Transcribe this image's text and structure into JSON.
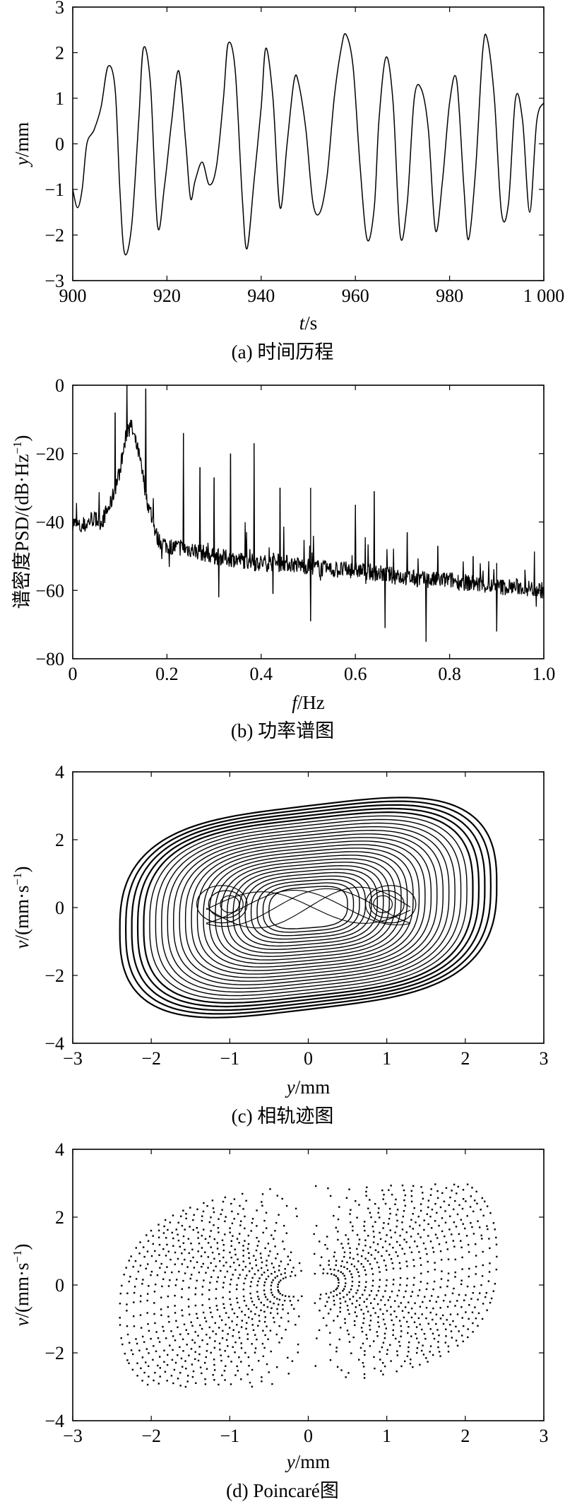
{
  "chart_data": [
    {
      "id": "a",
      "type": "line",
      "caption": "(a) 时间历程",
      "xlabel_var": "t",
      "xlabel_unit": "/s",
      "ylabel_var": "y",
      "ylabel_unit": "/mm",
      "xlim": [
        900,
        1000
      ],
      "ylim": [
        -3,
        3
      ],
      "xticks": [
        900,
        920,
        940,
        960,
        980,
        1000
      ],
      "xtick_labels": [
        "900",
        "920",
        "940",
        "960",
        "980",
        "1 000"
      ],
      "yticks": [
        -3,
        -2,
        -1,
        0,
        1,
        2,
        3
      ],
      "ytick_labels": [
        "−3",
        "−2",
        "−1",
        "0",
        "1",
        "2",
        "3"
      ],
      "series": [
        {
          "name": "y(t)",
          "x": [
            900,
            901,
            902,
            903,
            904.5,
            906,
            907.5,
            909,
            910,
            911,
            912.5,
            914,
            915,
            916.5,
            918,
            919.5,
            921,
            922.5,
            924,
            925,
            926,
            927.5,
            929,
            930.5,
            932,
            933,
            934.5,
            936,
            937,
            938.5,
            940,
            941,
            942.5,
            944,
            945.5,
            947,
            948,
            949.5,
            951,
            952.5,
            954,
            955.5,
            957,
            958,
            959.5,
            961,
            962.5,
            964,
            965,
            966.5,
            968,
            969.5,
            971,
            972.5,
            974,
            975.5,
            977,
            978.5,
            980,
            981.5,
            983,
            984,
            985.5,
            987,
            988,
            989.5,
            991,
            992.5,
            994,
            995.5,
            997,
            998.5,
            1000
          ],
          "values": [
            -1.0,
            -1.4,
            -1.0,
            0.0,
            0.3,
            0.8,
            1.7,
            1.2,
            -1.0,
            -2.4,
            -1.8,
            0.5,
            2.1,
            1.3,
            -1.8,
            -0.9,
            0.5,
            1.6,
            0.0,
            -1.2,
            -0.8,
            -0.4,
            -0.9,
            -0.5,
            1.0,
            2.2,
            1.6,
            -1.2,
            -2.3,
            -0.8,
            0.8,
            2.1,
            1.0,
            -1.4,
            0.0,
            1.4,
            1.3,
            0.3,
            -1.3,
            -1.5,
            -0.7,
            1.0,
            2.1,
            2.4,
            1.7,
            -0.5,
            -2.1,
            -1.4,
            0.5,
            1.9,
            0.9,
            -2.0,
            -1.3,
            1.0,
            1.2,
            0.3,
            -1.9,
            -0.8,
            0.9,
            1.4,
            -0.9,
            -2.1,
            -0.6,
            2.0,
            2.3,
            1.0,
            -1.5,
            -1.3,
            1.0,
            0.5,
            -1.5,
            0.5,
            0.9
          ]
        }
      ]
    },
    {
      "id": "b",
      "type": "line",
      "caption": "(b) 功率谱图",
      "xlabel_var": "f",
      "xlabel_unit": "/Hz",
      "ylabel": "谱密度PSD/(dB·Hz",
      "ylabel_sup": "−1",
      "ylabel_tail": ")",
      "xlim": [
        0,
        1.0
      ],
      "ylim": [
        -80,
        0
      ],
      "xticks": [
        0,
        0.2,
        0.4,
        0.6,
        0.8,
        1.0
      ],
      "xtick_labels": [
        "0",
        "0.2",
        "0.4",
        "0.6",
        "0.8",
        "1.0"
      ],
      "yticks": [
        -80,
        -60,
        -40,
        -20,
        0
      ],
      "ytick_labels": [
        "−80",
        "−60",
        "−40",
        "−20",
        "0"
      ],
      "baseline": {
        "f": [
          0,
          0.02,
          0.04,
          0.06,
          0.08,
          0.1,
          0.12,
          0.14,
          0.16,
          0.18,
          0.2,
          0.25,
          0.3,
          0.35,
          0.4,
          0.45,
          0.5,
          0.55,
          0.6,
          0.65,
          0.7,
          0.75,
          0.8,
          0.85,
          0.9,
          0.95,
          1.0
        ],
        "psd": [
          -40,
          -42,
          -39,
          -40,
          -35,
          -25,
          -10,
          -20,
          -35,
          -45,
          -47,
          -48,
          -50,
          -51,
          -52,
          -52,
          -53,
          -54,
          -54,
          -55,
          -56,
          -57,
          -57,
          -58,
          -59,
          -59,
          -60
        ]
      },
      "peaks_up": [
        {
          "f": 0.09,
          "psd": -8
        },
        {
          "f": 0.115,
          "psd": 0
        },
        {
          "f": 0.155,
          "psd": -1
        },
        {
          "f": 0.235,
          "psd": -14
        },
        {
          "f": 0.27,
          "psd": -24
        },
        {
          "f": 0.3,
          "psd": -27
        },
        {
          "f": 0.335,
          "psd": -20
        },
        {
          "f": 0.385,
          "psd": -17
        },
        {
          "f": 0.44,
          "psd": -30
        },
        {
          "f": 0.505,
          "psd": -30
        },
        {
          "f": 0.6,
          "psd": -35
        },
        {
          "f": 0.64,
          "psd": -31
        },
        {
          "f": 0.71,
          "psd": -43
        },
        {
          "f": 0.775,
          "psd": -47
        },
        {
          "f": 0.85,
          "psd": -50
        },
        {
          "f": 0.9,
          "psd": -52
        },
        {
          "f": 0.96,
          "psd": -54
        }
      ],
      "peaks_down": [
        {
          "f": 0.31,
          "psd": -62
        },
        {
          "f": 0.425,
          "psd": -61
        },
        {
          "f": 0.505,
          "psd": -69
        },
        {
          "f": 0.663,
          "psd": -71
        },
        {
          "f": 0.75,
          "psd": -75
        },
        {
          "f": 0.9,
          "psd": -72
        }
      ]
    },
    {
      "id": "c",
      "type": "line",
      "caption": "(c) 相轨迹图",
      "xlabel_var": "y",
      "xlabel_unit": "/mm",
      "ylabel_var": "v",
      "ylabel_unit": "/(mm·s",
      "ylabel_sup": "−1",
      "ylabel_tail": ")",
      "xlim": [
        -3,
        3
      ],
      "ylim": [
        -4,
        4
      ],
      "xticks": [
        -3,
        -2,
        -1,
        0,
        1,
        2,
        3
      ],
      "xtick_labels": [
        "−3",
        "−2",
        "−1",
        "0",
        "1",
        "2",
        "3"
      ],
      "yticks": [
        -4,
        -2,
        0,
        2,
        4
      ],
      "ytick_labels": [
        "−4",
        "−2",
        "0",
        "2",
        "4"
      ],
      "orbit": {
        "amplitude_y": [
          0.5,
          2.4
        ],
        "amplitude_v": [
          0.6,
          3.0
        ],
        "skew": 0.28,
        "centers_inner": [
          [
            -1.0,
            0.1
          ],
          [
            0.95,
            0.1
          ]
        ]
      }
    },
    {
      "id": "d",
      "type": "scatter",
      "caption": "(d) Poincaré图",
      "xlabel_var": "y",
      "xlabel_unit": "/mm",
      "ylabel_var": "v",
      "ylabel_unit": "/(mm·s",
      "ylabel_sup": "−1",
      "ylabel_tail": ")",
      "xlim": [
        -3,
        3
      ],
      "ylim": [
        -4,
        4
      ],
      "xticks": [
        -3,
        -2,
        -1,
        0,
        1,
        2,
        3
      ],
      "xtick_labels": [
        "−3",
        "−2",
        "−1",
        "0",
        "1",
        "2",
        "3"
      ],
      "yticks": [
        -4,
        -2,
        0,
        2,
        4
      ],
      "ytick_labels": [
        "−4",
        "−2",
        "0",
        "2",
        "4"
      ],
      "extent": {
        "y": [
          -2.4,
          2.4
        ],
        "v": [
          -3.0,
          3.0
        ]
      }
    }
  ]
}
